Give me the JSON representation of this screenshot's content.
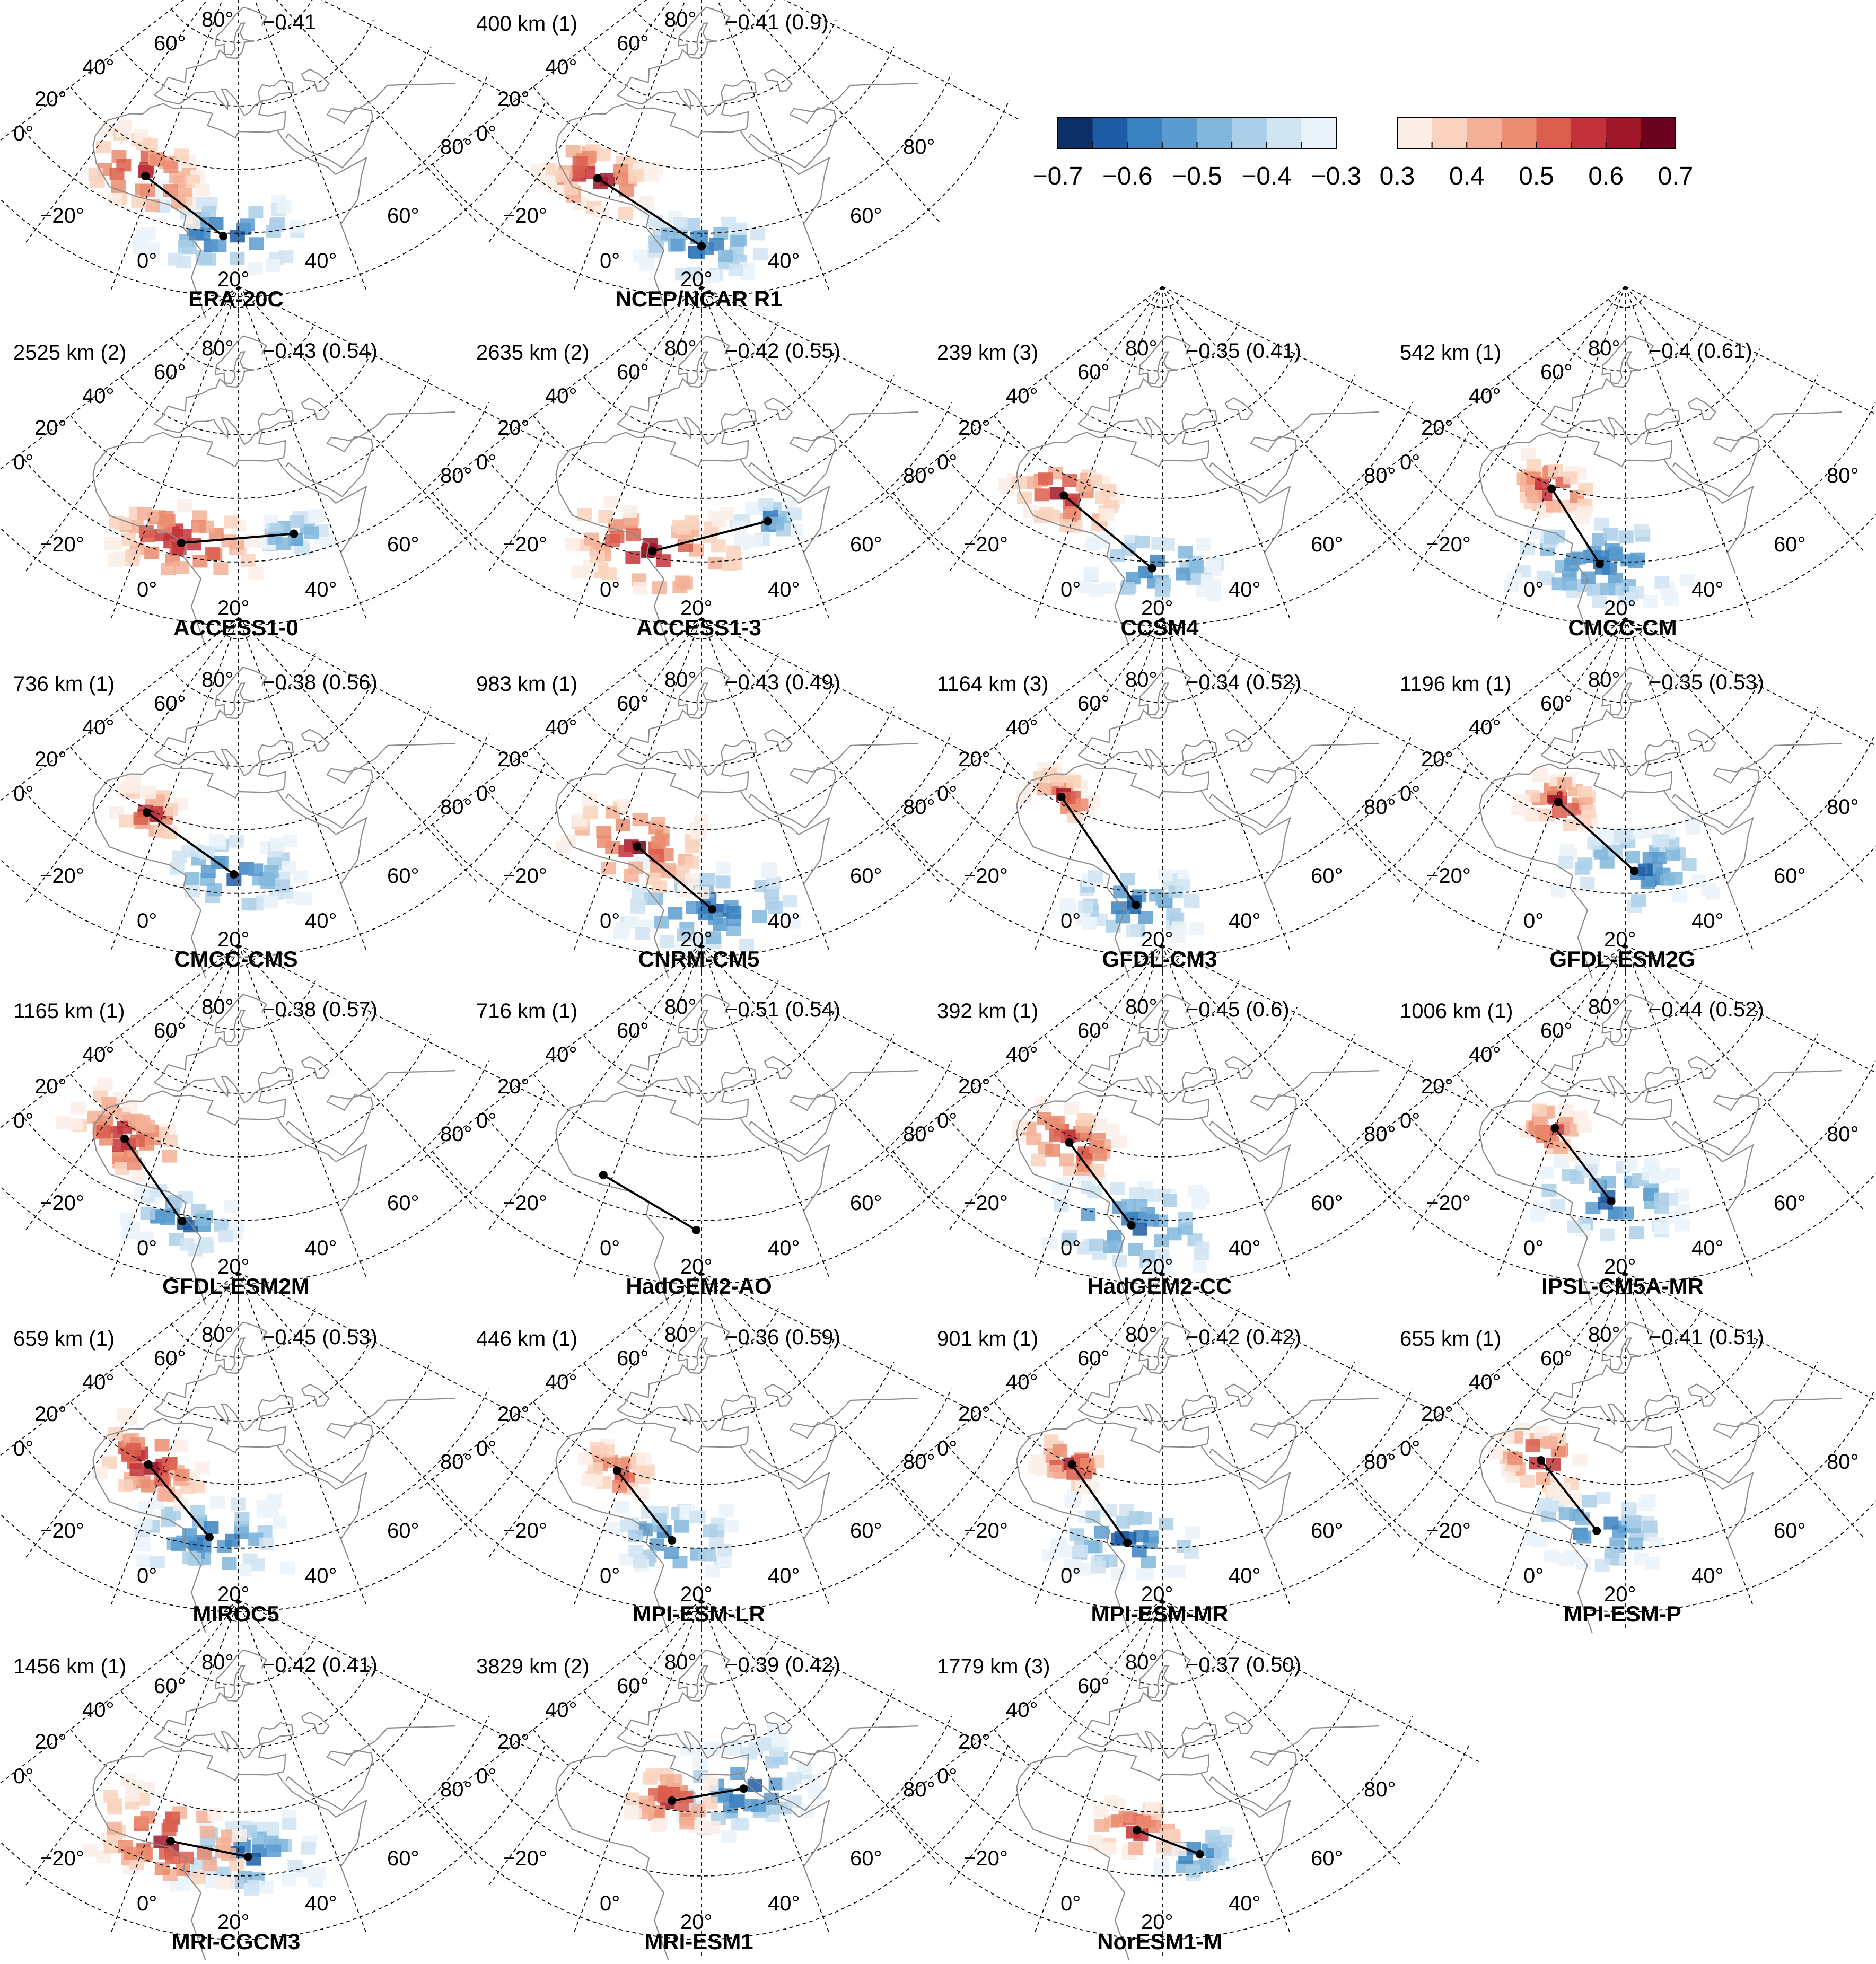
{
  "figure": {
    "colorbar": {
      "negative": {
        "ticks": [
          "−0.7",
          "−0.6",
          "−0.5",
          "−0.4",
          "−0.3"
        ],
        "colors": [
          "#0b2f66",
          "#1c5ca4",
          "#3981c0",
          "#5a9ccf",
          "#82b7dc",
          "#abcfe8",
          "#d0e4f2",
          "#eaf3f9"
        ]
      },
      "positive": {
        "ticks": [
          "0.3",
          "0.4",
          "0.5",
          "0.6",
          "0.7"
        ],
        "colors": [
          "#fbeee6",
          "#f9d2bd",
          "#f3b096",
          "#ea8c6f",
          "#da5e4d",
          "#c2323a",
          "#a01729",
          "#6b0320"
        ]
      }
    },
    "graticule_labels": {
      "lat": [
        "80°",
        "60°",
        "40°",
        "20°",
        "0°",
        "−20°"
      ],
      "lon": [
        "0°",
        "20°",
        "40°",
        "60°",
        "80°"
      ]
    },
    "panels": [
      {
        "name": "ERA-20C",
        "distance": "",
        "correlation": "−0.41",
        "red_center": [
          -2,
          12
        ],
        "blue_center": [
          17,
          -1
        ],
        "red_size": 1.0,
        "blue_size": 1.1
      },
      {
        "name": "NCEP/NCAR R1",
        "distance": "400 km  (1)",
        "correlation": "−0.41 (0.9)",
        "red_center": [
          -4,
          10
        ],
        "blue_center": [
          20,
          -4
        ],
        "red_size": 0.9,
        "blue_size": 0.9
      },
      {
        "name": "ACCESS1-0",
        "distance": "2525 km (2)",
        "correlation": "−0.43 (0.54)",
        "red_center": [
          8,
          4
        ],
        "blue_center": [
          32,
          7
        ],
        "red_size": 1.1,
        "blue_size": 0.5
      },
      {
        "name": "ACCESS1-3",
        "distance": "2635 km (2)",
        "correlation": "−0.42 (0.55)",
        "red_center": [
          10,
          2
        ],
        "blue_center": [
          35,
          10
        ],
        "red_size": 1.2,
        "blue_size": 0.5
      },
      {
        "name": "CCSM4",
        "distance": "239 km (3)",
        "correlation": "−0.35 (0.41)",
        "red_center": [
          -4,
          14
        ],
        "blue_center": [
          18,
          -2
        ],
        "red_size": 0.9,
        "blue_size": 0.9
      },
      {
        "name": "CMCC-CM",
        "distance": "542 km (1)",
        "correlation": "−0.4 (0.61)",
        "red_center": [
          1,
          19
        ],
        "blue_center": [
          15,
          -1
        ],
        "red_size": 0.7,
        "blue_size": 1.2
      },
      {
        "name": "CMCC-CMS",
        "distance": "736 km (1)",
        "correlation": "−0.38 (0.56)",
        "red_center": [
          -4,
          19
        ],
        "blue_center": [
          19,
          6
        ],
        "red_size": 0.6,
        "blue_size": 1.0
      },
      {
        "name": "CNRM-CM5",
        "distance": "983 km (1)",
        "correlation": "−0.43 (0.49)",
        "red_center": [
          5,
          12
        ],
        "blue_center": [
          22,
          -5
        ],
        "red_size": 1.1,
        "blue_size": 1.2
      },
      {
        "name": "GFDL-CM3",
        "distance": "1164 km (3)",
        "correlation": "−0.34 (0.52)",
        "red_center": [
          -8,
          22
        ],
        "blue_center": [
          15,
          -4
        ],
        "red_size": 0.6,
        "blue_size": 0.9
      },
      {
        "name": "GFDL-ESM2G",
        "distance": "1196 km (1)",
        "correlation": "−0.35 (0.53)",
        "red_center": [
          1,
          25
        ],
        "blue_center": [
          22,
          7
        ],
        "red_size": 0.7,
        "blue_size": 1.1
      },
      {
        "name": "GFDL-ESM2M",
        "distance": "1165 km (1)",
        "correlation": "−0.38 (0.57)",
        "red_center": [
          -9,
          16
        ],
        "blue_center": [
          9,
          -2
        ],
        "red_size": 1.0,
        "blue_size": 0.8
      },
      {
        "name": "HadGEM2-AO",
        "distance": "716 km (1)",
        "correlation": "−0.51 (0.54)",
        "red_center": [
          -2,
          8
        ],
        "blue_center": [
          19,
          -3
        ],
        "red_size": 0.0,
        "blue_size": 0.0
      },
      {
        "name": "HadGEM2-CC",
        "distance": "392 km (1)",
        "correlation": "−0.45 (0.6)",
        "red_center": [
          -4,
          18
        ],
        "blue_center": [
          14,
          -2
        ],
        "red_size": 0.9,
        "blue_size": 1.2
      },
      {
        "name": "IPSL-CM5A-MR",
        "distance": "1006 km (1)",
        "correlation": "−0.44 (0.52)",
        "red_center": [
          0,
          25
        ],
        "blue_center": [
          17,
          6
        ],
        "red_size": 0.6,
        "blue_size": 1.1
      },
      {
        "name": "MIROC5",
        "distance": "659 km (1)",
        "correlation": "−0.45 (0.53)",
        "red_center": [
          -4,
          20
        ],
        "blue_center": [
          14,
          3
        ],
        "red_size": 1.0,
        "blue_size": 1.1
      },
      {
        "name": "MPI-ESM-LR",
        "distance": "446 km (1)",
        "correlation": "−0.36 (0.59)",
        "red_center": [
          -2,
          19
        ],
        "blue_center": [
          14,
          2
        ],
        "red_size": 0.6,
        "blue_size": 0.9
      },
      {
        "name": "MPI-ESM-MR",
        "distance": "901 km (1)",
        "correlation": "−0.42 (0.42)",
        "red_center": [
          -4,
          20
        ],
        "blue_center": [
          13,
          1
        ],
        "red_size": 0.6,
        "blue_size": 1.0
      },
      {
        "name": "MPI-ESM-P",
        "distance": "655 km (1)",
        "correlation": "−0.41 (0.51)",
        "red_center": [
          -3,
          22
        ],
        "blue_center": [
          14,
          5
        ],
        "red_size": 0.8,
        "blue_size": 1.0
      },
      {
        "name": "MRI-CGCM3",
        "distance": "1456 km (1)",
        "correlation": "−0.42 (0.41)",
        "red_center": [
          5,
          8
        ],
        "blue_center": [
          22,
          6
        ],
        "red_size": 1.2,
        "blue_size": 1.0
      },
      {
        "name": "MRI-ESM1",
        "distance": "3829 km (2)",
        "correlation": "−0.39 (0.42)",
        "red_center": [
          12,
          23
        ],
        "blue_center": [
          32,
          26
        ],
        "red_size": 0.8,
        "blue_size": 1.3
      },
      {
        "name": "NorESM1-M",
        "distance": "1779 km  (3)",
        "correlation": "−0.37 (0.50)",
        "red_center": [
          14,
          14
        ],
        "blue_center": [
          28,
          6
        ],
        "red_size": 0.7,
        "blue_size": 0.6
      }
    ]
  }
}
